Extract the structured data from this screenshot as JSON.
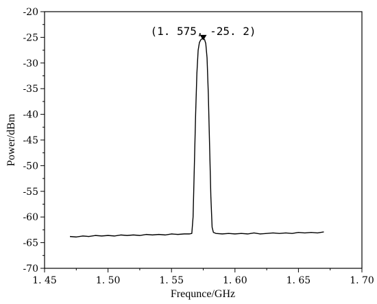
{
  "chart_data": {
    "type": "line",
    "xlabel": "Frequnce/GHz",
    "ylabel": "Power/dBm",
    "xlim": [
      1.45,
      1.7
    ],
    "ylim": [
      -70,
      -20
    ],
    "xticks": [
      1.45,
      1.5,
      1.55,
      1.6,
      1.65,
      1.7
    ],
    "xtick_labels": [
      "1. 45",
      "1. 50",
      "1. 55",
      "1. 60",
      "1. 65",
      "1. 70"
    ],
    "yticks": [
      -70,
      -65,
      -60,
      -55,
      -50,
      -45,
      -40,
      -35,
      -30,
      -25,
      -20
    ],
    "ytick_labels": [
      "-70",
      "-65",
      "-60",
      "-55",
      "-50",
      "-45",
      "-40",
      "-35",
      "-30",
      "-25",
      "-20"
    ],
    "grid": false,
    "series": [
      {
        "line_color": "#000000",
        "x": [
          1.47,
          1.475,
          1.48,
          1.485,
          1.49,
          1.495,
          1.5,
          1.505,
          1.51,
          1.515,
          1.52,
          1.525,
          1.53,
          1.535,
          1.54,
          1.545,
          1.55,
          1.555,
          1.56,
          1.564,
          1.566,
          1.567,
          1.568,
          1.569,
          1.57,
          1.571,
          1.572,
          1.573,
          1.574,
          1.575,
          1.576,
          1.577,
          1.578,
          1.579,
          1.58,
          1.581,
          1.582,
          1.583,
          1.585,
          1.59,
          1.595,
          1.6,
          1.605,
          1.61,
          1.615,
          1.62,
          1.625,
          1.63,
          1.635,
          1.64,
          1.645,
          1.65,
          1.655,
          1.66,
          1.665,
          1.67
        ],
        "y": [
          -63.8,
          -63.9,
          -63.7,
          -63.8,
          -63.6,
          -63.7,
          -63.6,
          -63.7,
          -63.5,
          -63.6,
          -63.5,
          -63.6,
          -63.4,
          -63.5,
          -63.4,
          -63.5,
          -63.3,
          -63.4,
          -63.3,
          -63.3,
          -63.2,
          -60.0,
          -50.0,
          -40.0,
          -32.0,
          -27.5,
          -26.0,
          -25.5,
          -25.3,
          -25.2,
          -25.4,
          -26.2,
          -29.0,
          -36.0,
          -46.0,
          -56.0,
          -62.0,
          -63.0,
          -63.2,
          -63.3,
          -63.2,
          -63.3,
          -63.2,
          -63.3,
          -63.1,
          -63.3,
          -63.2,
          -63.1,
          -63.2,
          -63.1,
          -63.2,
          -63.0,
          -63.1,
          -63.0,
          -63.1,
          -62.9
        ]
      }
    ],
    "annotations": [
      {
        "text": "(1. 575, -25. 2)",
        "x": 1.575,
        "y": -25.2,
        "marker": "down-triangle"
      }
    ]
  }
}
